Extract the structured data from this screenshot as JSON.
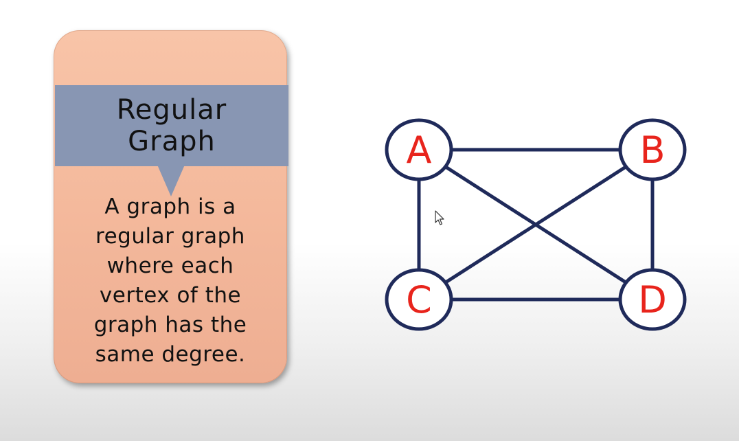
{
  "card": {
    "title_lines": [
      "Regular",
      "Graph"
    ],
    "description_lines": [
      "A graph is a",
      "regular graph",
      "where each",
      "vertex of the",
      "graph has the",
      "same degree."
    ]
  },
  "graph": {
    "vertices": [
      {
        "id": "A",
        "label": "A"
      },
      {
        "id": "B",
        "label": "B"
      },
      {
        "id": "C",
        "label": "C"
      },
      {
        "id": "D",
        "label": "D"
      }
    ],
    "edges": [
      [
        "A",
        "B"
      ],
      [
        "A",
        "C"
      ],
      [
        "A",
        "D"
      ],
      [
        "B",
        "C"
      ],
      [
        "B",
        "D"
      ],
      [
        "C",
        "D"
      ]
    ]
  },
  "colors": {
    "card_fill": "#f4b99c",
    "banner_fill": "#8896b3",
    "edge_color": "#1f2a5a",
    "vertex_label_color": "#e8241c"
  }
}
